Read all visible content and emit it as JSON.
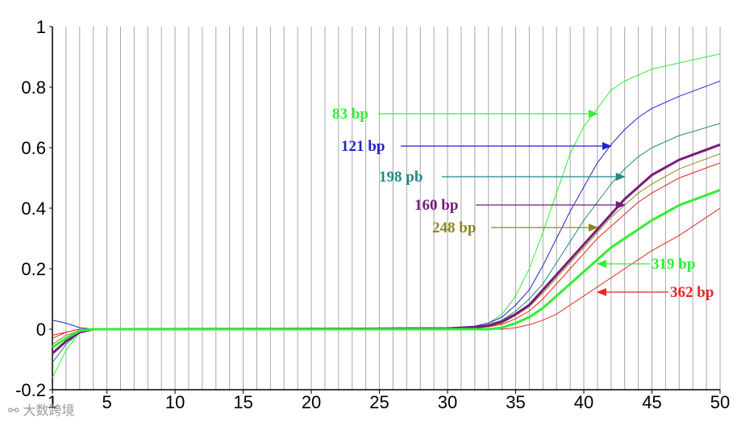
{
  "chart_data": {
    "type": "line",
    "title": "",
    "xlabel": "",
    "ylabel": "",
    "xlim": [
      1,
      50
    ],
    "ylim": [
      -0.2,
      1
    ],
    "x_ticks": [
      1,
      5,
      10,
      15,
      20,
      25,
      30,
      35,
      40,
      45,
      50
    ],
    "x_tick_labels": [
      "1",
      "5",
      "10",
      "15",
      "20",
      "25",
      "30",
      "35",
      "40",
      "45",
      "50"
    ],
    "y_ticks": [
      -0.2,
      0,
      0.2,
      0.4,
      0.6,
      0.8,
      1
    ],
    "y_tick_labels": [
      "-0.2",
      "0",
      "0.2",
      "0.4",
      "0.6",
      "0.8",
      "1"
    ],
    "grid": "vertical lines at every cycle",
    "series": [
      {
        "name": "83 bp",
        "color": "#33ee33",
        "width": 1,
        "points": [
          [
            1,
            -0.16
          ],
          [
            2,
            -0.07
          ],
          [
            3,
            -0.01
          ],
          [
            4,
            0
          ],
          [
            30,
            0.005
          ],
          [
            32,
            0.01
          ],
          [
            33,
            0.02
          ],
          [
            34,
            0.05
          ],
          [
            35,
            0.11
          ],
          [
            36,
            0.2
          ],
          [
            37,
            0.32
          ],
          [
            38,
            0.45
          ],
          [
            39,
            0.58
          ],
          [
            40,
            0.67
          ],
          [
            41,
            0.73
          ],
          [
            42,
            0.79
          ],
          [
            43,
            0.82
          ],
          [
            44,
            0.84
          ],
          [
            45,
            0.86
          ],
          [
            47,
            0.88
          ],
          [
            50,
            0.91
          ]
        ]
      },
      {
        "name": "121 bp",
        "color": "#2222cc",
        "width": 1,
        "points": [
          [
            1,
            0.03
          ],
          [
            2,
            0.02
          ],
          [
            3,
            0.005
          ],
          [
            4,
            0
          ],
          [
            30,
            0.005
          ],
          [
            32,
            0.01
          ],
          [
            33,
            0.02
          ],
          [
            34,
            0.04
          ],
          [
            35,
            0.08
          ],
          [
            36,
            0.13
          ],
          [
            37,
            0.21
          ],
          [
            38,
            0.3
          ],
          [
            39,
            0.39
          ],
          [
            40,
            0.47
          ],
          [
            41,
            0.55
          ],
          [
            42,
            0.61
          ],
          [
            43,
            0.66
          ],
          [
            44,
            0.7
          ],
          [
            45,
            0.73
          ],
          [
            47,
            0.77
          ],
          [
            50,
            0.82
          ]
        ]
      },
      {
        "name": "198 pb",
        "color": "#228888",
        "width": 1,
        "points": [
          [
            1,
            -0.11
          ],
          [
            2,
            -0.05
          ],
          [
            3,
            -0.01
          ],
          [
            4,
            0
          ],
          [
            30,
            0.005
          ],
          [
            32,
            0.008
          ],
          [
            33,
            0.015
          ],
          [
            34,
            0.03
          ],
          [
            35,
            0.06
          ],
          [
            36,
            0.1
          ],
          [
            37,
            0.15
          ],
          [
            38,
            0.22
          ],
          [
            39,
            0.29
          ],
          [
            40,
            0.36
          ],
          [
            41,
            0.42
          ],
          [
            42,
            0.48
          ],
          [
            43,
            0.53
          ],
          [
            44,
            0.57
          ],
          [
            45,
            0.6
          ],
          [
            47,
            0.64
          ],
          [
            50,
            0.68
          ]
        ]
      },
      {
        "name": "160 bp",
        "color": "#7a1a7a",
        "width": 3,
        "points": [
          [
            1,
            -0.08
          ],
          [
            2,
            -0.04
          ],
          [
            3,
            -0.01
          ],
          [
            4,
            0
          ],
          [
            30,
            0.002
          ],
          [
            32,
            0.006
          ],
          [
            33,
            0.012
          ],
          [
            34,
            0.025
          ],
          [
            35,
            0.05
          ],
          [
            36,
            0.08
          ],
          [
            37,
            0.13
          ],
          [
            38,
            0.18
          ],
          [
            39,
            0.23
          ],
          [
            40,
            0.28
          ],
          [
            41,
            0.33
          ],
          [
            42,
            0.38
          ],
          [
            43,
            0.43
          ],
          [
            44,
            0.47
          ],
          [
            45,
            0.51
          ],
          [
            47,
            0.56
          ],
          [
            50,
            0.61
          ]
        ]
      },
      {
        "name": "248 bp",
        "color": "#888822",
        "width": 1,
        "points": [
          [
            1,
            -0.05
          ],
          [
            2,
            -0.02
          ],
          [
            3,
            -0.005
          ],
          [
            4,
            0
          ],
          [
            30,
            0.002
          ],
          [
            32,
            0.005
          ],
          [
            33,
            0.01
          ],
          [
            34,
            0.02
          ],
          [
            35,
            0.045
          ],
          [
            36,
            0.075
          ],
          [
            37,
            0.12
          ],
          [
            38,
            0.17
          ],
          [
            39,
            0.22
          ],
          [
            40,
            0.27
          ],
          [
            41,
            0.32
          ],
          [
            42,
            0.37
          ],
          [
            43,
            0.41
          ],
          [
            44,
            0.45
          ],
          [
            45,
            0.48
          ],
          [
            47,
            0.53
          ],
          [
            50,
            0.58
          ]
        ]
      },
      {
        "name": "",
        "color": "#ee2222",
        "width": 1,
        "points": [
          [
            1,
            -0.02
          ],
          [
            2,
            -0.01
          ],
          [
            3,
            0
          ],
          [
            4,
            0
          ],
          [
            30,
            0.002
          ],
          [
            32,
            0.004
          ],
          [
            33,
            0.008
          ],
          [
            34,
            0.016
          ],
          [
            35,
            0.035
          ],
          [
            36,
            0.06
          ],
          [
            37,
            0.1
          ],
          [
            38,
            0.15
          ],
          [
            39,
            0.2
          ],
          [
            40,
            0.25
          ],
          [
            41,
            0.3
          ],
          [
            42,
            0.34
          ],
          [
            43,
            0.38
          ],
          [
            44,
            0.42
          ],
          [
            45,
            0.45
          ],
          [
            47,
            0.5
          ],
          [
            50,
            0.55
          ]
        ]
      },
      {
        "name": "319 bp",
        "color": "#33ee33",
        "width": 3,
        "points": [
          [
            1,
            -0.06
          ],
          [
            2,
            -0.03
          ],
          [
            3,
            -0.005
          ],
          [
            4,
            0
          ],
          [
            30,
            0
          ],
          [
            33,
            0
          ],
          [
            34,
            0.005
          ],
          [
            35,
            0.02
          ],
          [
            36,
            0.04
          ],
          [
            37,
            0.07
          ],
          [
            38,
            0.11
          ],
          [
            39,
            0.15
          ],
          [
            40,
            0.19
          ],
          [
            41,
            0.23
          ],
          [
            42,
            0.27
          ],
          [
            43,
            0.3
          ],
          [
            44,
            0.33
          ],
          [
            45,
            0.36
          ],
          [
            47,
            0.41
          ],
          [
            50,
            0.46
          ]
        ]
      },
      {
        "name": "362 bp",
        "color": "#ee2222",
        "width": 1,
        "points": [
          [
            1,
            -0.03
          ],
          [
            2,
            -0.01
          ],
          [
            3,
            0
          ],
          [
            4,
            0
          ],
          [
            30,
            0
          ],
          [
            34,
            0
          ],
          [
            35,
            0.005
          ],
          [
            36,
            0.015
          ],
          [
            37,
            0.03
          ],
          [
            38,
            0.05
          ],
          [
            39,
            0.08
          ],
          [
            40,
            0.11
          ],
          [
            41,
            0.14
          ],
          [
            42,
            0.17
          ],
          [
            43,
            0.2
          ],
          [
            44,
            0.23
          ],
          [
            45,
            0.26
          ],
          [
            47,
            0.31
          ],
          [
            50,
            0.4
          ]
        ]
      }
    ],
    "annotations": [
      {
        "text": "83 bp",
        "color": "#33ee33",
        "arrow_to": [
          41,
          0.7
        ]
      },
      {
        "text": "121 bp",
        "color": "#2222cc",
        "arrow_to": [
          42,
          0.61
        ]
      },
      {
        "text": "198 pb",
        "color": "#228888",
        "arrow_to": [
          43,
          0.51
        ]
      },
      {
        "text": "160 bp",
        "color": "#7a1a7a",
        "arrow_to": [
          43,
          0.4
        ]
      },
      {
        "text": "248 bp",
        "color": "#888822",
        "arrow_to": [
          41,
          0.34
        ]
      },
      {
        "text": "319 bp",
        "color": "#33ee33",
        "arrow_to": [
          41,
          0.21
        ]
      },
      {
        "text": "362 bp",
        "color": "#ee2222",
        "arrow_to": [
          41,
          0.12
        ]
      }
    ]
  },
  "watermark": "大数跨境"
}
